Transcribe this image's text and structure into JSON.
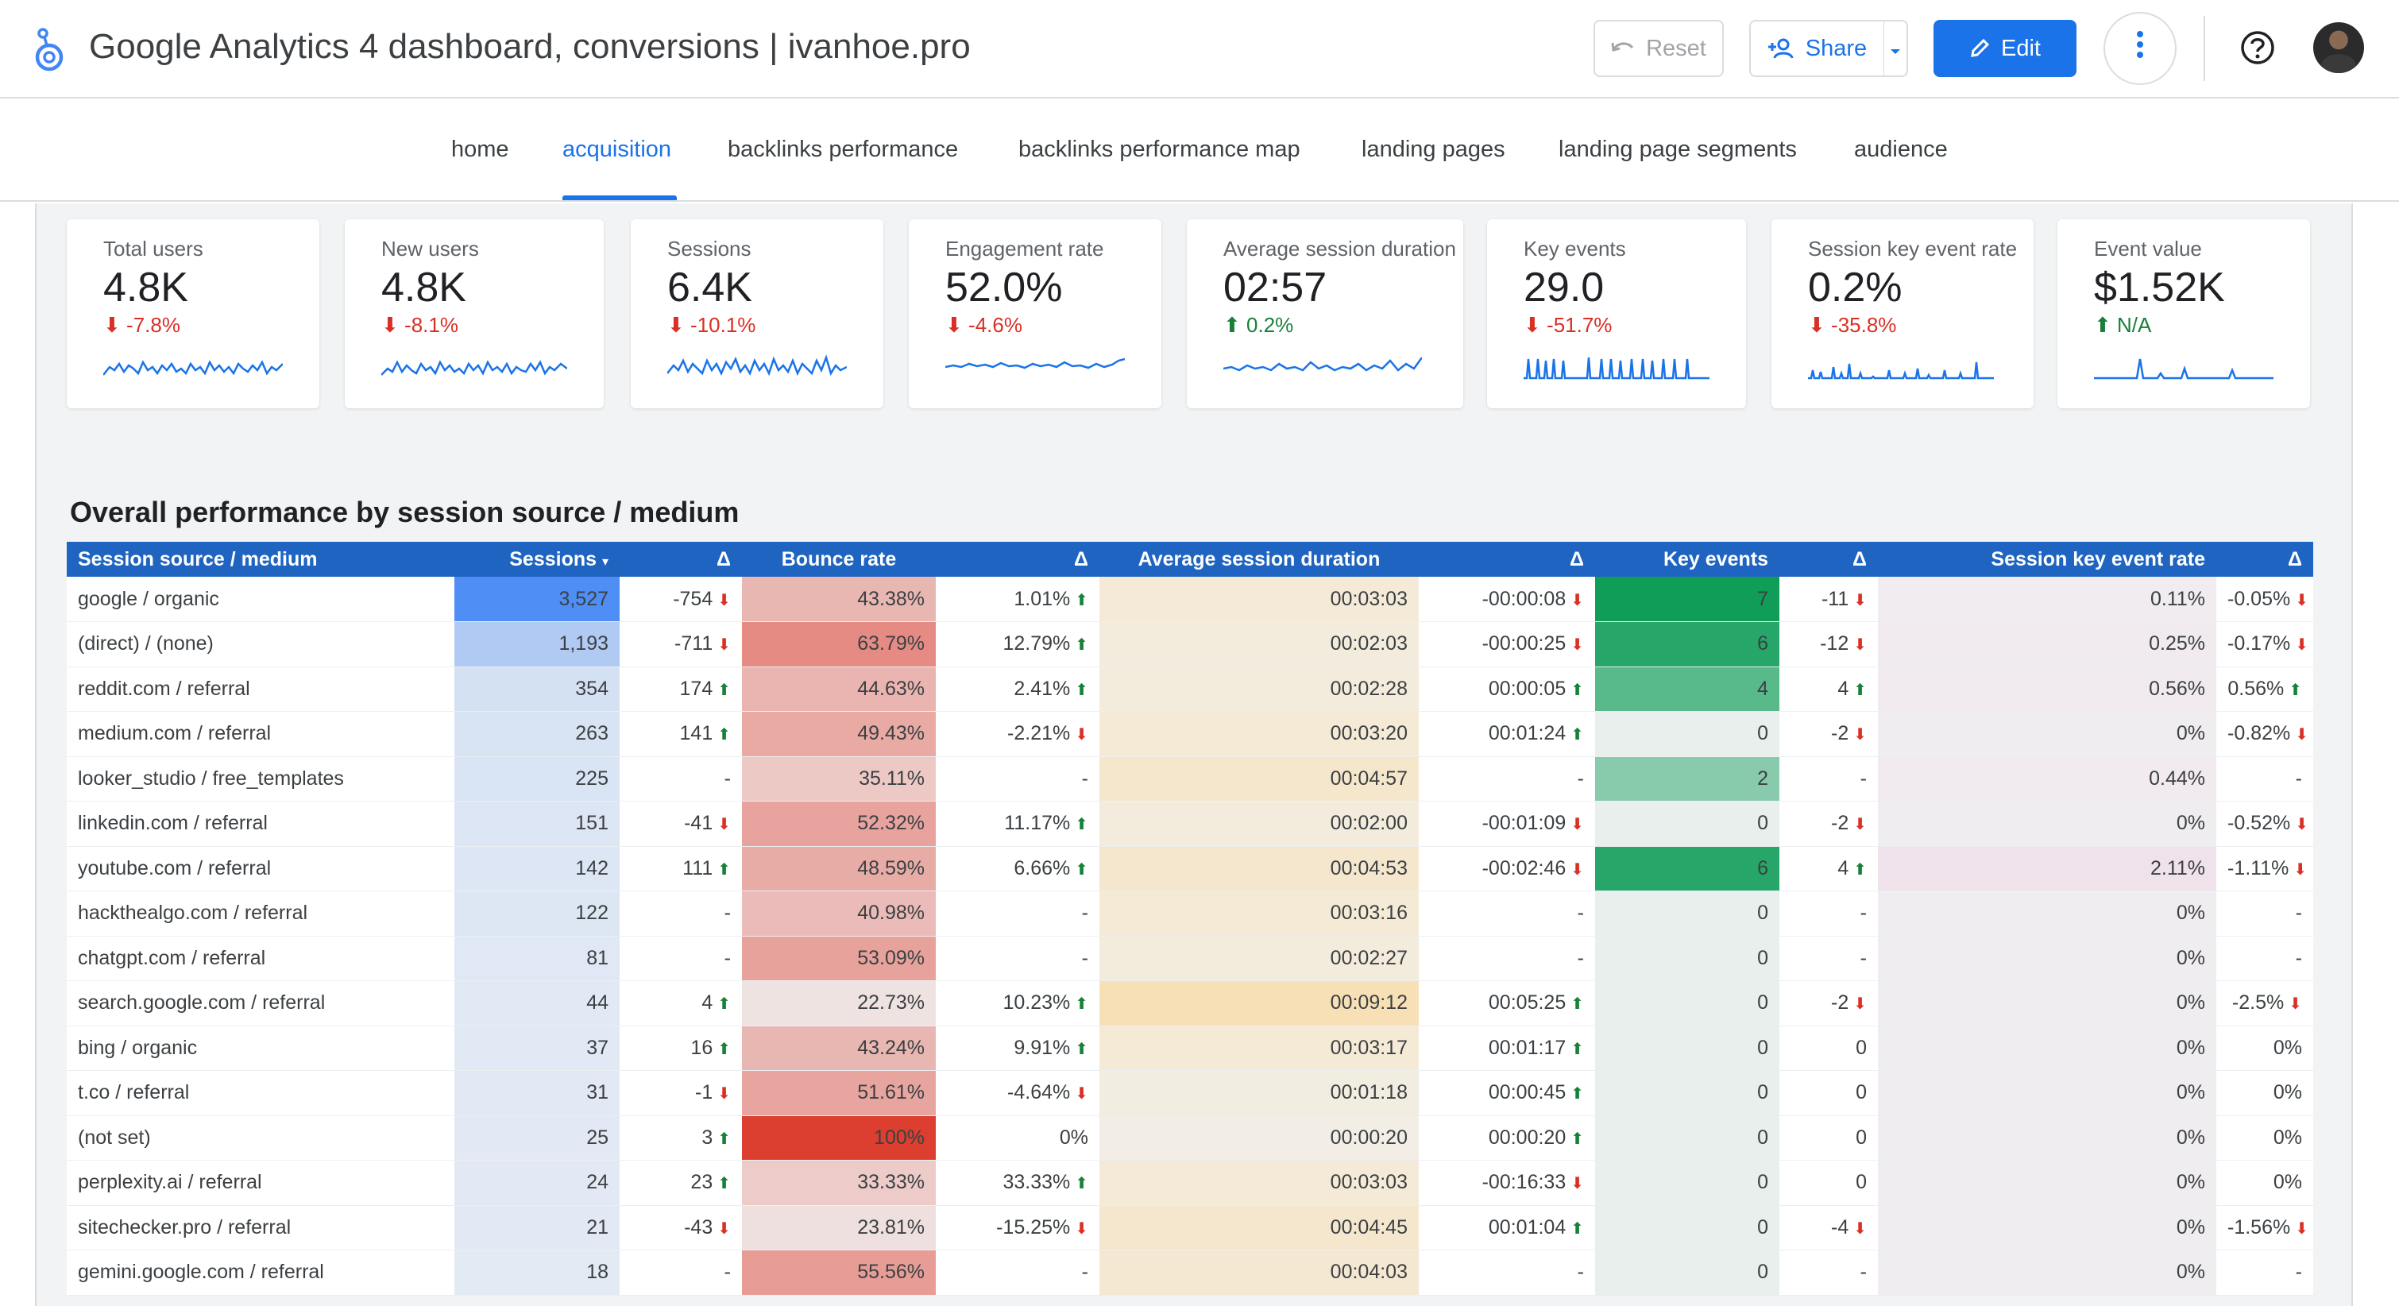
{
  "header": {
    "title": "Google Analytics 4 dashboard, conversions | ivanhoe.pro",
    "reset_label": "Reset",
    "share_label": "Share",
    "edit_label": "Edit"
  },
  "tabs": [
    {
      "label": "home",
      "active": false
    },
    {
      "label": "acquisition",
      "active": true
    },
    {
      "label": "backlinks performance",
      "active": false
    },
    {
      "label": "backlinks performance map",
      "active": false
    },
    {
      "label": "landing pages",
      "active": false
    },
    {
      "label": "landing page segments",
      "active": false
    },
    {
      "label": "audience",
      "active": false
    }
  ],
  "scorecards": [
    {
      "label": "Total users",
      "value": "4.8K",
      "delta": "-7.8%",
      "trend": "down"
    },
    {
      "label": "New users",
      "value": "4.8K",
      "delta": "-8.1%",
      "trend": "down"
    },
    {
      "label": "Sessions",
      "value": "6.4K",
      "delta": "-10.1%",
      "trend": "down"
    },
    {
      "label": "Engagement rate",
      "value": "52.0%",
      "delta": "-4.6%",
      "trend": "down"
    },
    {
      "label": "Average session duration",
      "value": "02:57",
      "delta": "0.2%",
      "trend": "up"
    },
    {
      "label": "Key events",
      "value": "29.0",
      "delta": "-51.7%",
      "trend": "down"
    },
    {
      "label": "Session key event rate",
      "value": "0.2%",
      "delta": "-35.8%",
      "trend": "down"
    },
    {
      "label": "Event value",
      "value": "$1.52K",
      "delta": "N/A",
      "trend": "up"
    }
  ],
  "table": {
    "title": "Overall performance by session source / medium",
    "headers": [
      "Session source / medium",
      "Sessions",
      "Δ",
      "Bounce rate",
      "Δ",
      "Average session duration",
      "Δ",
      "Key events",
      "Δ",
      "Session key event rate",
      "Δ"
    ],
    "sort_indicator": "▾",
    "rows": [
      {
        "source": "google / organic",
        "sessions": "3,527",
        "sessions_d": "-754",
        "sessions_t": "down",
        "bounce": "43.38%",
        "bounce_d": "1.01%",
        "bounce_t": "up",
        "dur": "00:03:03",
        "dur_d": "-00:00:08",
        "dur_t": "down",
        "ke": "7",
        "ke_d": "-11",
        "ke_t": "down",
        "rate": "0.11%",
        "rate_d": "-0.05%",
        "rate_t": "down"
      },
      {
        "source": "(direct) / (none)",
        "sessions": "1,193",
        "sessions_d": "-711",
        "sessions_t": "down",
        "bounce": "63.79%",
        "bounce_d": "12.79%",
        "bounce_t": "up",
        "dur": "00:02:03",
        "dur_d": "-00:00:25",
        "dur_t": "down",
        "ke": "6",
        "ke_d": "-12",
        "ke_t": "down",
        "rate": "0.25%",
        "rate_d": "-0.17%",
        "rate_t": "down"
      },
      {
        "source": "reddit.com / referral",
        "sessions": "354",
        "sessions_d": "174",
        "sessions_t": "up",
        "bounce": "44.63%",
        "bounce_d": "2.41%",
        "bounce_t": "up",
        "dur": "00:02:28",
        "dur_d": "00:00:05",
        "dur_t": "up",
        "ke": "4",
        "ke_d": "4",
        "ke_t": "up",
        "rate": "0.56%",
        "rate_d": "0.56%",
        "rate_t": "up"
      },
      {
        "source": "medium.com / referral",
        "sessions": "263",
        "sessions_d": "141",
        "sessions_t": "up",
        "bounce": "49.43%",
        "bounce_d": "-2.21%",
        "bounce_t": "down",
        "dur": "00:03:20",
        "dur_d": "00:01:24",
        "dur_t": "up",
        "ke": "0",
        "ke_d": "-2",
        "ke_t": "down",
        "rate": "0%",
        "rate_d": "-0.82%",
        "rate_t": "down"
      },
      {
        "source": "looker_studio / free_templates",
        "sessions": "225",
        "sessions_d": "-",
        "sessions_t": "",
        "bounce": "35.11%",
        "bounce_d": "-",
        "bounce_t": "",
        "dur": "00:04:57",
        "dur_d": "-",
        "dur_t": "",
        "ke": "2",
        "ke_d": "-",
        "ke_t": "",
        "rate": "0.44%",
        "rate_d": "-",
        "rate_t": ""
      },
      {
        "source": "linkedin.com / referral",
        "sessions": "151",
        "sessions_d": "-41",
        "sessions_t": "down",
        "bounce": "52.32%",
        "bounce_d": "11.17%",
        "bounce_t": "up",
        "dur": "00:02:00",
        "dur_d": "-00:01:09",
        "dur_t": "down",
        "ke": "0",
        "ke_d": "-2",
        "ke_t": "down",
        "rate": "0%",
        "rate_d": "-0.52%",
        "rate_t": "down"
      },
      {
        "source": "youtube.com / referral",
        "sessions": "142",
        "sessions_d": "111",
        "sessions_t": "up",
        "bounce": "48.59%",
        "bounce_d": "6.66%",
        "bounce_t": "up",
        "dur": "00:04:53",
        "dur_d": "-00:02:46",
        "dur_t": "down",
        "ke": "6",
        "ke_d": "4",
        "ke_t": "up",
        "rate": "2.11%",
        "rate_d": "-1.11%",
        "rate_t": "down"
      },
      {
        "source": "hackthealgo.com / referral",
        "sessions": "122",
        "sessions_d": "-",
        "sessions_t": "",
        "bounce": "40.98%",
        "bounce_d": "-",
        "bounce_t": "",
        "dur": "00:03:16",
        "dur_d": "-",
        "dur_t": "",
        "ke": "0",
        "ke_d": "-",
        "ke_t": "",
        "rate": "0%",
        "rate_d": "-",
        "rate_t": ""
      },
      {
        "source": "chatgpt.com / referral",
        "sessions": "81",
        "sessions_d": "-",
        "sessions_t": "",
        "bounce": "53.09%",
        "bounce_d": "-",
        "bounce_t": "",
        "dur": "00:02:27",
        "dur_d": "-",
        "dur_t": "",
        "ke": "0",
        "ke_d": "-",
        "ke_t": "",
        "rate": "0%",
        "rate_d": "-",
        "rate_t": ""
      },
      {
        "source": "search.google.com / referral",
        "sessions": "44",
        "sessions_d": "4",
        "sessions_t": "up",
        "bounce": "22.73%",
        "bounce_d": "10.23%",
        "bounce_t": "up",
        "dur": "00:09:12",
        "dur_d": "00:05:25",
        "dur_t": "up",
        "ke": "0",
        "ke_d": "-2",
        "ke_t": "down",
        "rate": "0%",
        "rate_d": "-2.5%",
        "rate_t": "down"
      },
      {
        "source": "bing / organic",
        "sessions": "37",
        "sessions_d": "16",
        "sessions_t": "up",
        "bounce": "43.24%",
        "bounce_d": "9.91%",
        "bounce_t": "up",
        "dur": "00:03:17",
        "dur_d": "00:01:17",
        "dur_t": "up",
        "ke": "0",
        "ke_d": "0",
        "ke_t": "",
        "rate": "0%",
        "rate_d": "0%",
        "rate_t": ""
      },
      {
        "source": "t.co / referral",
        "sessions": "31",
        "sessions_d": "-1",
        "sessions_t": "down",
        "bounce": "51.61%",
        "bounce_d": "-4.64%",
        "bounce_t": "down",
        "dur": "00:01:18",
        "dur_d": "00:00:45",
        "dur_t": "up",
        "ke": "0",
        "ke_d": "0",
        "ke_t": "",
        "rate": "0%",
        "rate_d": "0%",
        "rate_t": ""
      },
      {
        "source": "(not set)",
        "sessions": "25",
        "sessions_d": "3",
        "sessions_t": "up",
        "bounce": "100%",
        "bounce_d": "0%",
        "bounce_t": "",
        "dur": "00:00:20",
        "dur_d": "00:00:20",
        "dur_t": "up",
        "ke": "0",
        "ke_d": "0",
        "ke_t": "",
        "rate": "0%",
        "rate_d": "0%",
        "rate_t": ""
      },
      {
        "source": "perplexity.ai / referral",
        "sessions": "24",
        "sessions_d": "23",
        "sessions_t": "up",
        "bounce": "33.33%",
        "bounce_d": "33.33%",
        "bounce_t": "up",
        "dur": "00:03:03",
        "dur_d": "-00:16:33",
        "dur_t": "down",
        "ke": "0",
        "ke_d": "0",
        "ke_t": "",
        "rate": "0%",
        "rate_d": "0%",
        "rate_t": ""
      },
      {
        "source": "sitechecker.pro / referral",
        "sessions": "21",
        "sessions_d": "-43",
        "sessions_t": "down",
        "bounce": "23.81%",
        "bounce_d": "-15.25%",
        "bounce_t": "down",
        "dur": "00:04:45",
        "dur_d": "00:01:04",
        "dur_t": "up",
        "ke": "0",
        "ke_d": "-4",
        "ke_t": "down",
        "rate": "0%",
        "rate_d": "-1.56%",
        "rate_t": "down"
      },
      {
        "source": "gemini.google.com / referral",
        "sessions": "18",
        "sessions_d": "-",
        "sessions_t": "",
        "bounce": "55.56%",
        "bounce_d": "-",
        "bounce_t": "",
        "dur": "00:04:03",
        "dur_d": "-",
        "dur_t": "",
        "ke": "0",
        "ke_d": "-",
        "ke_t": "",
        "rate": "0%",
        "rate_d": "-",
        "rate_t": ""
      }
    ]
  },
  "colors": {
    "accent": "#1a73e8",
    "header_row": "#1e64c0",
    "negative": "#d93025",
    "positive": "#188038"
  }
}
